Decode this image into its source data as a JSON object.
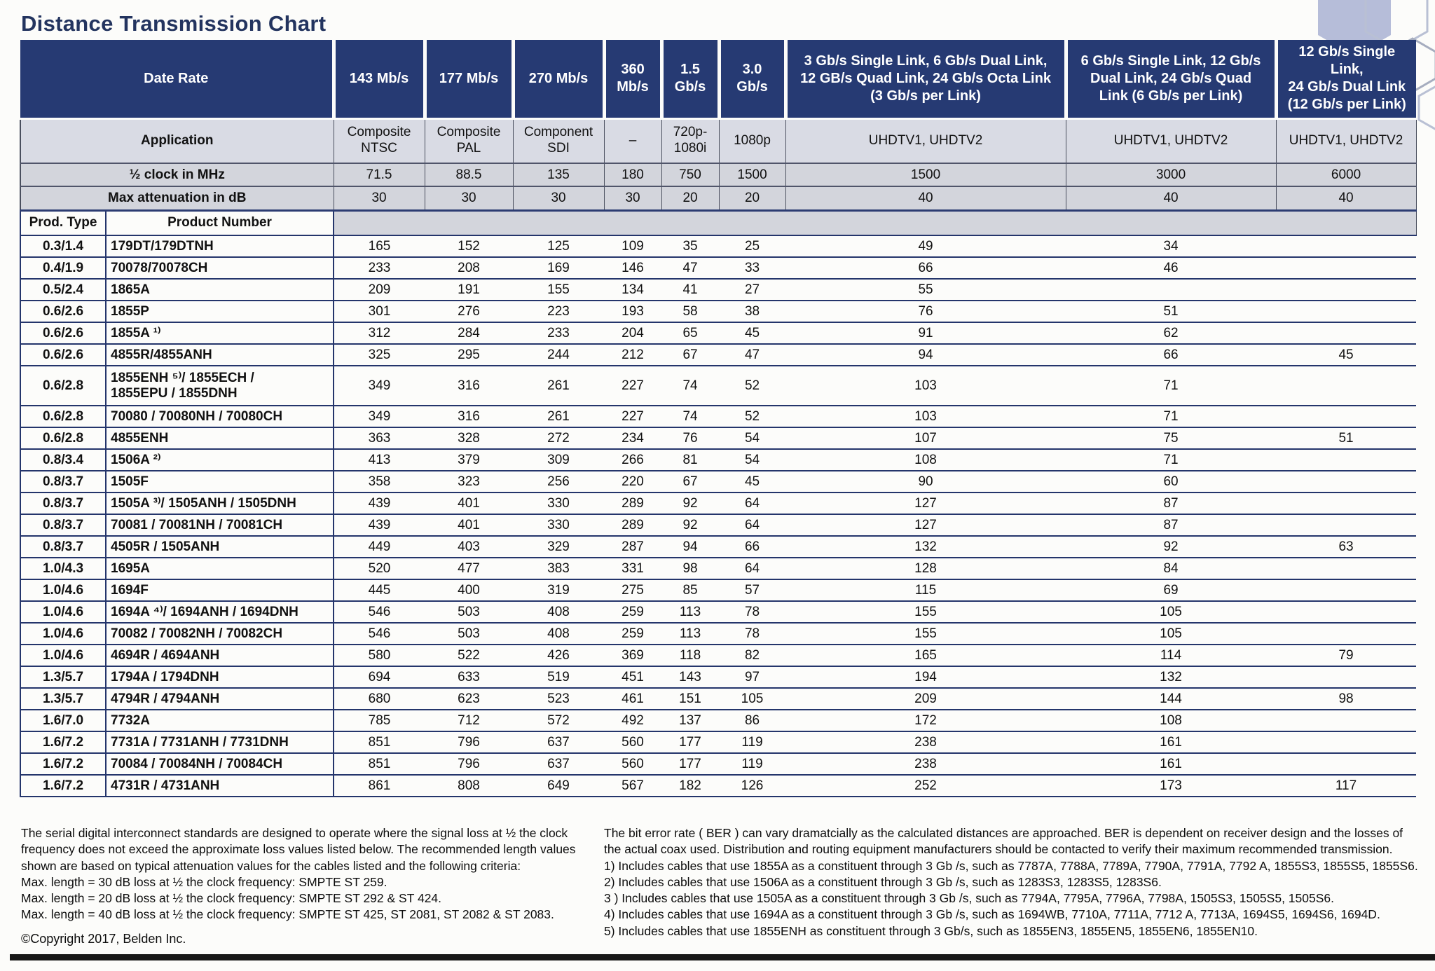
{
  "title": "Distance Transmission Chart",
  "table": {
    "row_headers": {
      "date_rate": "Date Rate",
      "application": "Application",
      "half_clock": "½ clock in MHz",
      "max_attenuation": "Max attenuation in dB",
      "prod_type": "Prod. Type",
      "product_number": "Product Number"
    },
    "columns": [
      {
        "rate": "143 Mb/s",
        "application": "Composite\nNTSC",
        "half_clock": "71.5",
        "max_attenuation": "30"
      },
      {
        "rate": "177 Mb/s",
        "application": "Composite\nPAL",
        "half_clock": "88.5",
        "max_attenuation": "30"
      },
      {
        "rate": "270 Mb/s",
        "application": "Component\nSDI",
        "half_clock": "135",
        "max_attenuation": "30"
      },
      {
        "rate": "360\nMb/s",
        "application": "–",
        "half_clock": "180",
        "max_attenuation": "30"
      },
      {
        "rate": "1.5\nGb/s",
        "application": "720p-\n1080i",
        "half_clock": "750",
        "max_attenuation": "20"
      },
      {
        "rate": "3.0\nGb/s",
        "application": "1080p",
        "half_clock": "1500",
        "max_attenuation": "20"
      },
      {
        "rate": "3 Gb/s Single Link, 6 Gb/s Dual Link,\n12 GB/s Quad Link, 24 Gb/s Octa Link\n(3 Gb/s per Link)",
        "application": "UHDTV1, UHDTV2",
        "half_clock": "1500",
        "max_attenuation": "40"
      },
      {
        "rate": "6 Gb/s Single Link, 12 Gb/s\nDual Link, 24 Gb/s Quad\nLink (6 Gb/s per Link)",
        "application": "UHDTV1, UHDTV2",
        "half_clock": "3000",
        "max_attenuation": "40"
      },
      {
        "rate": "12 Gb/s Single Link,\n24 Gb/s Dual Link\n(12 Gb/s per Link)",
        "application": "UHDTV1, UHDTV2",
        "half_clock": "6000",
        "max_attenuation": "40"
      }
    ],
    "rows": [
      {
        "prod_type": "0.3/1.4",
        "product": "179DT/179DTNH",
        "values": [
          "165",
          "152",
          "125",
          "109",
          "35",
          "25",
          "49",
          "34",
          ""
        ]
      },
      {
        "prod_type": "0.4/1.9",
        "product": "70078/70078CH",
        "values": [
          "233",
          "208",
          "169",
          "146",
          "47",
          "33",
          "66",
          "46",
          ""
        ]
      },
      {
        "prod_type": "0.5/2.4",
        "product": "1865A",
        "values": [
          "209",
          "191",
          "155",
          "134",
          "41",
          "27",
          "55",
          "",
          ""
        ]
      },
      {
        "prod_type": "0.6/2.6",
        "product": "1855P",
        "values": [
          "301",
          "276",
          "223",
          "193",
          "58",
          "38",
          "76",
          "51",
          ""
        ]
      },
      {
        "prod_type": "0.6/2.6",
        "product": "1855A ¹⁾",
        "values": [
          "312",
          "284",
          "233",
          "204",
          "65",
          "45",
          "91",
          "62",
          ""
        ]
      },
      {
        "prod_type": "0.6/2.6",
        "product": "4855R/4855ANH",
        "values": [
          "325",
          "295",
          "244",
          "212",
          "67",
          "47",
          "94",
          "66",
          "45"
        ]
      },
      {
        "prod_type": "0.6/2.8",
        "product": "1855ENH ⁵⁾/ 1855ECH /\n1855EPU / 1855DNH",
        "values": [
          "349",
          "316",
          "261",
          "227",
          "74",
          "52",
          "103",
          "71",
          ""
        ]
      },
      {
        "prod_type": "0.6/2.8",
        "product": "70080 / 70080NH / 70080CH",
        "values": [
          "349",
          "316",
          "261",
          "227",
          "74",
          "52",
          "103",
          "71",
          ""
        ]
      },
      {
        "prod_type": "0.6/2.8",
        "product": "4855ENH",
        "values": [
          "363",
          "328",
          "272",
          "234",
          "76",
          "54",
          "107",
          "75",
          "51"
        ]
      },
      {
        "prod_type": "0.8/3.4",
        "product": "1506A ²⁾",
        "values": [
          "413",
          "379",
          "309",
          "266",
          "81",
          "54",
          "108",
          "71",
          ""
        ]
      },
      {
        "prod_type": "0.8/3.7",
        "product": "1505F",
        "values": [
          "358",
          "323",
          "256",
          "220",
          "67",
          "45",
          "90",
          "60",
          ""
        ]
      },
      {
        "prod_type": "0.8/3.7",
        "product": "1505A ³⁾/ 1505ANH / 1505DNH",
        "values": [
          "439",
          "401",
          "330",
          "289",
          "92",
          "64",
          "127",
          "87",
          ""
        ]
      },
      {
        "prod_type": "0.8/3.7",
        "product": "70081 / 70081NH / 70081CH",
        "values": [
          "439",
          "401",
          "330",
          "289",
          "92",
          "64",
          "127",
          "87",
          ""
        ]
      },
      {
        "prod_type": "0.8/3.7",
        "product": "4505R / 1505ANH",
        "values": [
          "449",
          "403",
          "329",
          "287",
          "94",
          "66",
          "132",
          "92",
          "63"
        ]
      },
      {
        "prod_type": "1.0/4.3",
        "product": "1695A",
        "values": [
          "520",
          "477",
          "383",
          "331",
          "98",
          "64",
          "128",
          "84",
          ""
        ]
      },
      {
        "prod_type": "1.0/4.6",
        "product": "1694F",
        "values": [
          "445",
          "400",
          "319",
          "275",
          "85",
          "57",
          "115",
          "69",
          ""
        ]
      },
      {
        "prod_type": "1.0/4.6",
        "product": "1694A ⁴⁾/ 1694ANH / 1694DNH",
        "values": [
          "546",
          "503",
          "408",
          "259",
          "113",
          "78",
          "155",
          "105",
          ""
        ]
      },
      {
        "prod_type": "1.0/4.6",
        "product": "70082 / 70082NH / 70082CH",
        "values": [
          "546",
          "503",
          "408",
          "259",
          "113",
          "78",
          "155",
          "105",
          ""
        ]
      },
      {
        "prod_type": "1.0/4.6",
        "product": "4694R / 4694ANH",
        "values": [
          "580",
          "522",
          "426",
          "369",
          "118",
          "82",
          "165",
          "114",
          "79"
        ]
      },
      {
        "prod_type": "1.3/5.7",
        "product": "1794A / 1794DNH",
        "values": [
          "694",
          "633",
          "519",
          "451",
          "143",
          "97",
          "194",
          "132",
          ""
        ]
      },
      {
        "prod_type": "1.3/5.7",
        "product": "4794R / 4794ANH",
        "values": [
          "680",
          "623",
          "523",
          "461",
          "151",
          "105",
          "209",
          "144",
          "98"
        ]
      },
      {
        "prod_type": "1.6/7.0",
        "product": "7732A",
        "values": [
          "785",
          "712",
          "572",
          "492",
          "137",
          "86",
          "172",
          "108",
          ""
        ]
      },
      {
        "prod_type": "1.6/7.2",
        "product": "7731A / 7731ANH / 7731DNH",
        "values": [
          "851",
          "796",
          "637",
          "560",
          "177",
          "119",
          "238",
          "161",
          ""
        ]
      },
      {
        "prod_type": "1.6/7.2",
        "product": "70084 / 70084NH / 70084CH",
        "values": [
          "851",
          "796",
          "637",
          "560",
          "177",
          "119",
          "238",
          "161",
          ""
        ]
      },
      {
        "prod_type": "1.6/7.2",
        "product": "4731R / 4731ANH",
        "values": [
          "861",
          "808",
          "649",
          "567",
          "182",
          "126",
          "252",
          "173",
          "117"
        ]
      }
    ]
  },
  "footnotes": {
    "left_paragraph": "The serial digital interconnect standards are designed to operate where the signal loss at ½ the clock frequency does not exceed the approximate loss values listed below. The recommended length values shown are based on typical attenuation values for the cables listed and the following criteria:",
    "left_lines": [
      "Max. length = 30 dB loss at ½ the clock frequency: SMPTE ST 259.",
      "Max. length = 20 dB loss at ½ the clock frequency: SMPTE ST 292 & ST 424.",
      "Max. length = 40 dB loss at ½ the clock frequency: SMPTE ST 425, ST 2081, ST 2082 & ST 2083."
    ],
    "right_paragraph": "The bit error rate ( BER ) can vary dramatcially as the calculated distances are approached. BER is dependent on receiver design and the losses of the actual coax used. Distribution and routing equipment manufacturers should be contacted to verify their maximum recommended transmission.",
    "right_notes": [
      "1) Includes cables that use 1855A as a constituent through 3 Gb /s, such as 7787A, 7788A, 7789A, 7790A, 7791A, 7792 A, 1855S3, 1855S5, 1855S6.",
      "2) Includes cables that use 1506A as a constituent through 3 Gb /s, such as 1283S3, 1283S5, 1283S6.",
      "3 ) Includes cables that use 1505A as a constituent through 3 Gb /s, such as 7794A, 7795A, 7796A, 7798A, 1505S3, 1505S5, 1505S6.",
      "4) Includes cables that use 1694A as a constituent through 3 Gb /s, such as 1694WB, 7710A, 7711A, 7712 A, 7713A, 1694S5, 1694S6, 1694D.",
      "5) Includes cables that use 1855ENH as constituent through 3 Gb/s, such as 1855EN3, 1855EN5, 1855EN6, 1855EN10."
    ]
  },
  "copyright": "©Copyright 2017, Belden Inc.",
  "colors": {
    "header_navy": "#263a73",
    "subrow_gray": "#d3d5dc",
    "app_row_gray": "#d9dbe4",
    "rule_navy": "#24356b"
  }
}
